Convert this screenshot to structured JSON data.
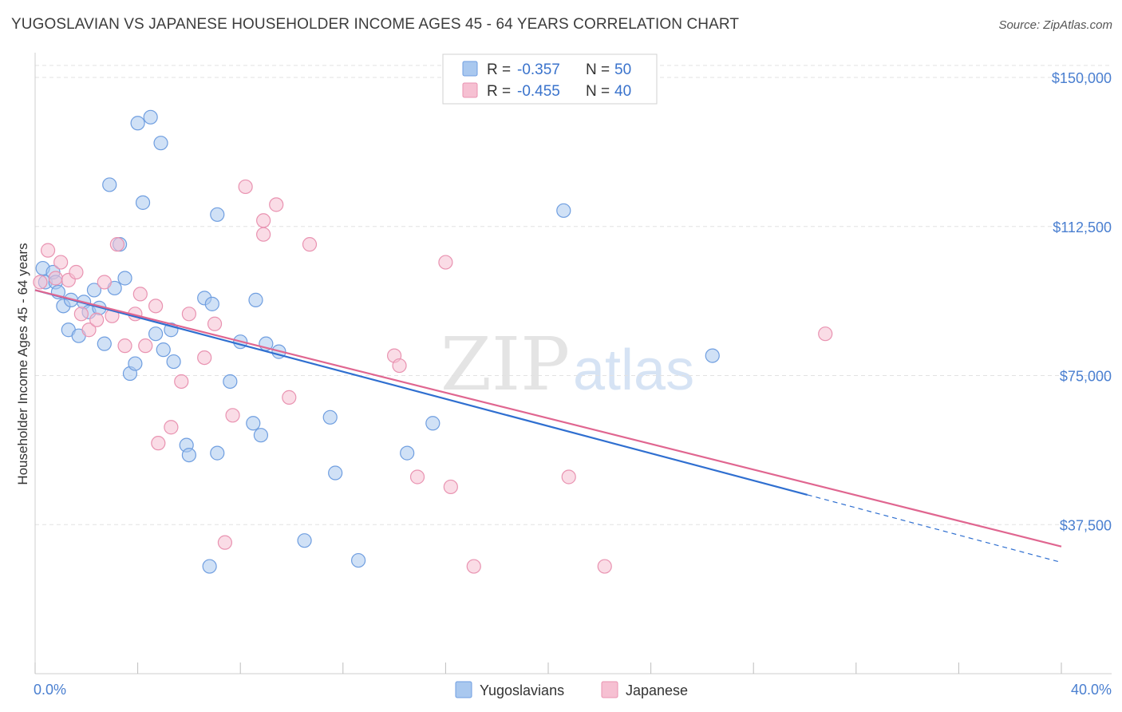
{
  "title": "YUGOSLAVIAN VS JAPANESE HOUSEHOLDER INCOME AGES 45 - 64 YEARS CORRELATION CHART",
  "source": "Source: ZipAtlas.com",
  "watermark": {
    "part1": "ZIP",
    "part2": "atlas"
  },
  "colors": {
    "yugoslavians_fill": "#a9c8ef",
    "yugoslavians_stroke": "#6f9ee0",
    "yugoslavians_line": "#2f6fd0",
    "japanese_fill": "#f6c0d2",
    "japanese_stroke": "#e993b1",
    "japanese_line": "#e06690",
    "axis_label": "#4a7fd0",
    "grid": "#e2e2e2"
  },
  "stats": [
    {
      "r_label": "R =",
      "r_value": "-0.357",
      "n_label": "N =",
      "n_value": "50"
    },
    {
      "r_label": "R =",
      "r_value": "-0.455",
      "n_label": "N =",
      "n_value": "40"
    }
  ],
  "chart_data": {
    "type": "scatter",
    "title": "YUGOSLAVIAN VS JAPANESE HOUSEHOLDER INCOME AGES 45 - 64 YEARS CORRELATION CHART",
    "xlabel": "",
    "ylabel": "Householder Income Ages 45 - 64 years",
    "x_unit": "percent",
    "xlim": [
      0,
      40
    ],
    "ylim": [
      0,
      153000
    ],
    "x_tick_labels": {
      "left": "0.0%",
      "right": "40.0%"
    },
    "y_ticks": [
      37500,
      75000,
      112500,
      150000
    ],
    "y_tick_labels": [
      "$37,500",
      "$75,000",
      "$112,500",
      "$150,000"
    ],
    "grid": true,
    "legend_position": "bottom-center",
    "series": [
      {
        "name": "Yugoslavians",
        "color": "#a9c8ef",
        "trend": {
          "x": [
            0,
            30.1
          ],
          "y": [
            96500,
            45000
          ],
          "dashed_to": {
            "x": 40,
            "y": 28000
          }
        },
        "points": [
          {
            "x": 0.3,
            "y": 102000
          },
          {
            "x": 0.4,
            "y": 98500
          },
          {
            "x": 0.7,
            "y": 101000
          },
          {
            "x": 0.8,
            "y": 98500
          },
          {
            "x": 0.9,
            "y": 96000
          },
          {
            "x": 1.1,
            "y": 92500
          },
          {
            "x": 1.3,
            "y": 86500
          },
          {
            "x": 1.4,
            "y": 94000
          },
          {
            "x": 1.7,
            "y": 85000
          },
          {
            "x": 1.9,
            "y": 93500
          },
          {
            "x": 2.1,
            "y": 91000
          },
          {
            "x": 2.3,
            "y": 96500
          },
          {
            "x": 2.5,
            "y": 92000
          },
          {
            "x": 2.7,
            "y": 83000
          },
          {
            "x": 2.9,
            "y": 123000
          },
          {
            "x": 3.1,
            "y": 97000
          },
          {
            "x": 3.3,
            "y": 108000
          },
          {
            "x": 3.5,
            "y": 99500
          },
          {
            "x": 3.7,
            "y": 75500
          },
          {
            "x": 3.9,
            "y": 78000
          },
          {
            "x": 4.0,
            "y": 138500
          },
          {
            "x": 4.2,
            "y": 118500
          },
          {
            "x": 4.5,
            "y": 140000
          },
          {
            "x": 4.7,
            "y": 85500
          },
          {
            "x": 4.9,
            "y": 133500
          },
          {
            "x": 5.0,
            "y": 81500
          },
          {
            "x": 5.3,
            "y": 86500
          },
          {
            "x": 5.4,
            "y": 78500
          },
          {
            "x": 5.9,
            "y": 57500
          },
          {
            "x": 6.0,
            "y": 55000
          },
          {
            "x": 6.6,
            "y": 94500
          },
          {
            "x": 6.8,
            "y": 27000
          },
          {
            "x": 6.9,
            "y": 93000
          },
          {
            "x": 7.1,
            "y": 55500
          },
          {
            "x": 7.1,
            "y": 115500
          },
          {
            "x": 7.6,
            "y": 73500
          },
          {
            "x": 8.0,
            "y": 83500
          },
          {
            "x": 8.5,
            "y": 63000
          },
          {
            "x": 8.6,
            "y": 94000
          },
          {
            "x": 8.8,
            "y": 60000
          },
          {
            "x": 9.0,
            "y": 83000
          },
          {
            "x": 9.5,
            "y": 81000
          },
          {
            "x": 10.5,
            "y": 33500
          },
          {
            "x": 11.5,
            "y": 64500
          },
          {
            "x": 11.7,
            "y": 50500
          },
          {
            "x": 12.6,
            "y": 28500
          },
          {
            "x": 14.5,
            "y": 55500
          },
          {
            "x": 15.5,
            "y": 63000
          },
          {
            "x": 20.6,
            "y": 116500
          },
          {
            "x": 26.4,
            "y": 80000
          }
        ]
      },
      {
        "name": "Japanese",
        "color": "#f6c0d2",
        "trend": {
          "x": [
            0,
            40
          ],
          "y": [
            96500,
            32000
          ]
        },
        "points": [
          {
            "x": 0.2,
            "y": 98500
          },
          {
            "x": 0.5,
            "y": 106500
          },
          {
            "x": 0.8,
            "y": 99500
          },
          {
            "x": 1.0,
            "y": 103500
          },
          {
            "x": 1.3,
            "y": 99000
          },
          {
            "x": 1.6,
            "y": 101000
          },
          {
            "x": 1.8,
            "y": 90500
          },
          {
            "x": 2.1,
            "y": 86500
          },
          {
            "x": 2.4,
            "y": 89000
          },
          {
            "x": 2.7,
            "y": 98500
          },
          {
            "x": 3.0,
            "y": 90000
          },
          {
            "x": 3.2,
            "y": 108000
          },
          {
            "x": 3.5,
            "y": 82500
          },
          {
            "x": 3.9,
            "y": 90500
          },
          {
            "x": 4.1,
            "y": 95500
          },
          {
            "x": 4.3,
            "y": 82500
          },
          {
            "x": 4.7,
            "y": 92500
          },
          {
            "x": 4.8,
            "y": 58000
          },
          {
            "x": 5.3,
            "y": 62000
          },
          {
            "x": 5.7,
            "y": 73500
          },
          {
            "x": 6.0,
            "y": 90500
          },
          {
            "x": 6.6,
            "y": 79500
          },
          {
            "x": 7.0,
            "y": 88000
          },
          {
            "x": 7.4,
            "y": 33000
          },
          {
            "x": 7.7,
            "y": 65000
          },
          {
            "x": 8.2,
            "y": 122500
          },
          {
            "x": 8.9,
            "y": 114000
          },
          {
            "x": 8.9,
            "y": 110500
          },
          {
            "x": 9.4,
            "y": 118000
          },
          {
            "x": 9.9,
            "y": 69500
          },
          {
            "x": 10.7,
            "y": 108000
          },
          {
            "x": 14.0,
            "y": 80000
          },
          {
            "x": 14.2,
            "y": 77500
          },
          {
            "x": 14.9,
            "y": 49500
          },
          {
            "x": 16.0,
            "y": 103500
          },
          {
            "x": 16.2,
            "y": 47000
          },
          {
            "x": 17.1,
            "y": 27000
          },
          {
            "x": 20.8,
            "y": 49500
          },
          {
            "x": 22.2,
            "y": 27000
          },
          {
            "x": 30.8,
            "y": 85500
          }
        ]
      }
    ]
  }
}
